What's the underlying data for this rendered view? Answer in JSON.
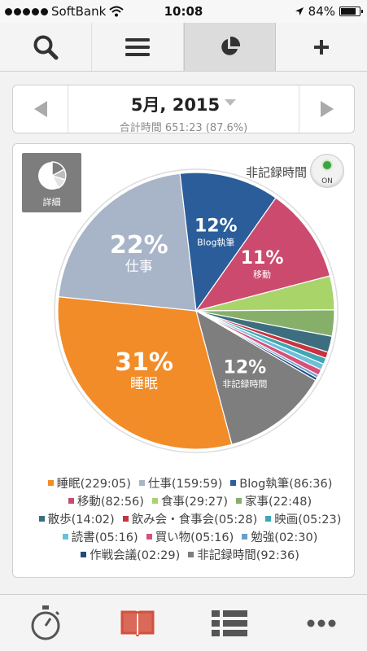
{
  "status_bar": {
    "carrier": "SoftBank",
    "time": "10:08",
    "battery_text": "84%",
    "battery_level": 0.84
  },
  "toolbar": {
    "icons": [
      "search-icon",
      "menu-icon",
      "pie-chart-icon",
      "plus-icon"
    ],
    "active_index": 2
  },
  "date_header": {
    "title": "5月, 2015",
    "subtitle": "合計時間 651:23 (87.6%)"
  },
  "chart_header": {
    "detail_label": "詳細",
    "unrecorded_label": "非記録時間",
    "toggle_label": "ON"
  },
  "chart_data": {
    "type": "pie",
    "series": [
      {
        "name": "睡眠",
        "value": "229:05",
        "minutes": 13745,
        "color": "#f28c28",
        "pct_label": "31%",
        "slice_label": "睡眠"
      },
      {
        "name": "仕事",
        "value": "159:59",
        "minutes": 9599,
        "color": "#a8b4c8",
        "pct_label": "22%",
        "slice_label": "仕事"
      },
      {
        "name": "Blog執筆",
        "value": "86:36",
        "minutes": 5196,
        "color": "#2a5d9a",
        "pct_label": "12%",
        "slice_label": "Blog執筆"
      },
      {
        "name": "移動",
        "value": "82:56",
        "minutes": 4976,
        "color": "#cc4a6e",
        "pct_label": "11%",
        "slice_label": "移動"
      },
      {
        "name": "食事",
        "value": "29:27",
        "minutes": 1767,
        "color": "#a8d46a",
        "pct_label": "",
        "slice_label": ""
      },
      {
        "name": "家事",
        "value": "22:48",
        "minutes": 1368,
        "color": "#86b06a",
        "pct_label": "",
        "slice_label": ""
      },
      {
        "name": "散歩",
        "value": "14:02",
        "minutes": 842,
        "color": "#3c6e80",
        "pct_label": "",
        "slice_label": ""
      },
      {
        "name": "飲み会・食事会",
        "value": "05:28",
        "minutes": 328,
        "color": "#c8333f",
        "pct_label": "",
        "slice_label": ""
      },
      {
        "name": "映画",
        "value": "05:23",
        "minutes": 323,
        "color": "#3ea6b4",
        "pct_label": "",
        "slice_label": ""
      },
      {
        "name": "読書",
        "value": "05:16",
        "minutes": 316,
        "color": "#6cc0d8",
        "pct_label": "",
        "slice_label": ""
      },
      {
        "name": "買い物",
        "value": "05:16",
        "minutes": 316,
        "color": "#d8507a",
        "pct_label": "",
        "slice_label": ""
      },
      {
        "name": "勉強",
        "value": "02:30",
        "minutes": 150,
        "color": "#6aa0cc",
        "pct_label": "",
        "slice_label": ""
      },
      {
        "name": "作戦会議",
        "value": "02:29",
        "minutes": 149,
        "color": "#1f4c80",
        "pct_label": "",
        "slice_label": ""
      },
      {
        "name": "非記録時間",
        "value": "92:36",
        "minutes": 5556,
        "color": "#7e7e7e",
        "pct_label": "12%",
        "slice_label": "非記録時間"
      }
    ],
    "legend_rows": [
      [
        0,
        1,
        2
      ],
      [
        3,
        4,
        5
      ],
      [
        6,
        7,
        8
      ],
      [
        9,
        10,
        11
      ],
      [
        12,
        13
      ]
    ]
  },
  "tab_bar": {
    "icons": [
      "stopwatch-icon",
      "book-icon",
      "list-icon",
      "more-icon"
    ],
    "active_index": 1
  }
}
